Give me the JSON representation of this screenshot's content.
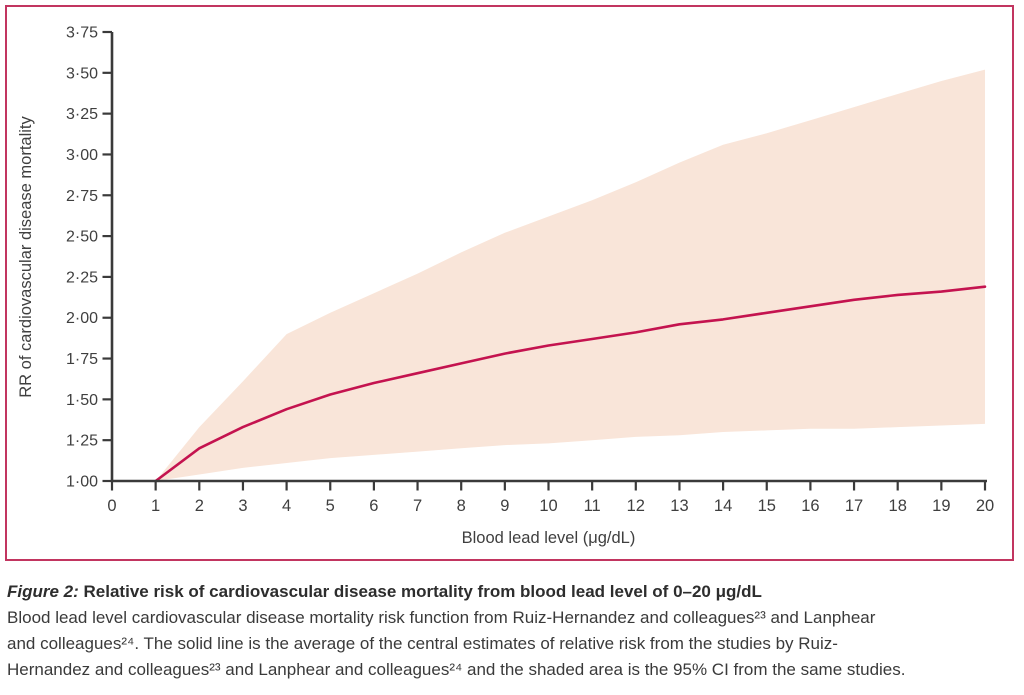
{
  "colors": {
    "panel_border": "#c23560",
    "curve": "#c4134f",
    "ci_band": "#f9e5d9",
    "axis": "#3a3a3a",
    "text": "#3f3f3f"
  },
  "chart_data": {
    "type": "line",
    "title": "",
    "xlabel": "Blood lead level (μg/dL)",
    "ylabel": "RR of cardiovascular disease mortality",
    "xlim": [
      0,
      20
    ],
    "ylim": [
      1.0,
      3.75
    ],
    "grid": false,
    "legend_position": "none",
    "x_ticks": [
      0,
      1,
      2,
      3,
      4,
      5,
      6,
      7,
      8,
      9,
      10,
      11,
      12,
      13,
      14,
      15,
      16,
      17,
      18,
      19,
      20
    ],
    "y_ticks": [
      1.0,
      1.25,
      1.5,
      1.75,
      2.0,
      2.25,
      2.5,
      2.75,
      3.0,
      3.25,
      3.5,
      3.75
    ],
    "y_tick_labels": [
      "1·00",
      "1·25",
      "1·50",
      "1·75",
      "2·00",
      "2·25",
      "2·50",
      "2·75",
      "3·00",
      "3·25",
      "3·50",
      "3·75"
    ],
    "series": [
      {
        "name": "Average of central estimates of relative risk",
        "x": [
          1,
          2,
          3,
          4,
          5,
          6,
          7,
          8,
          9,
          10,
          11,
          12,
          13,
          14,
          15,
          16,
          17,
          18,
          19,
          20
        ],
        "y": [
          1.0,
          1.2,
          1.33,
          1.44,
          1.53,
          1.6,
          1.66,
          1.72,
          1.78,
          1.83,
          1.87,
          1.91,
          1.96,
          1.99,
          2.03,
          2.07,
          2.11,
          2.14,
          2.16,
          2.19
        ]
      }
    ],
    "band": {
      "name": "95% CI",
      "x": [
        1,
        2,
        3,
        4,
        5,
        6,
        7,
        8,
        9,
        10,
        11,
        12,
        13,
        14,
        15,
        16,
        17,
        18,
        19,
        20
      ],
      "upper": [
        1.0,
        1.33,
        1.61,
        1.9,
        2.03,
        2.15,
        2.27,
        2.4,
        2.52,
        2.62,
        2.72,
        2.83,
        2.95,
        3.06,
        3.13,
        3.21,
        3.29,
        3.37,
        3.45,
        3.52
      ],
      "lower": [
        1.0,
        1.04,
        1.08,
        1.11,
        1.14,
        1.16,
        1.18,
        1.2,
        1.22,
        1.23,
        1.25,
        1.27,
        1.28,
        1.3,
        1.31,
        1.32,
        1.32,
        1.33,
        1.34,
        1.35
      ]
    }
  },
  "caption": {
    "title_prefix": "Figure 2:",
    "title_rest": " Relative risk of cardiovascular disease mortality from blood lead level of 0–20 μg/dL",
    "body_lines": [
      "Blood lead level cardiovascular disease mortality risk function from Ruiz-Hernandez and colleagues²³ and Lanphear",
      "and colleagues²⁴. The solid line is the average of the central estimates of relative risk from the studies by Ruiz-",
      "Hernandez and colleagues²³ and Lanphear and colleagues²⁴ and the shaded area is the 95% CI from the same studies."
    ]
  }
}
